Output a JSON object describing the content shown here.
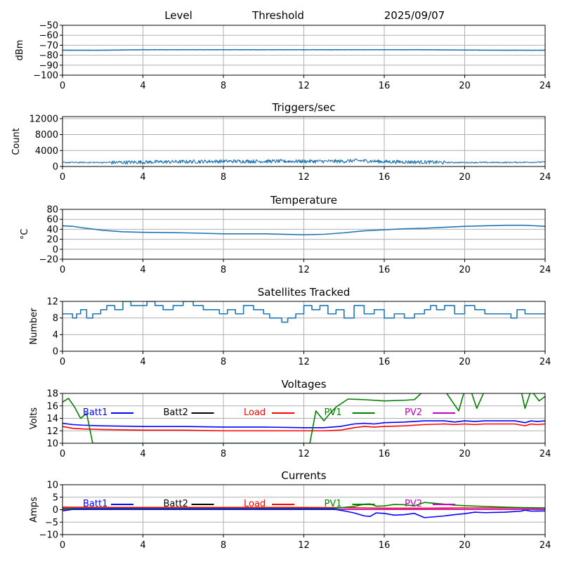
{
  "header": {
    "left": "Level",
    "center": "Threshold",
    "date": "2025/09/07"
  },
  "colors": {
    "primary": "#1f77b4",
    "grid": "#b0b0b0"
  },
  "chart_data": [
    {
      "type": "line",
      "title": "",
      "ylabel": "dBm",
      "xlim": [
        0,
        24
      ],
      "ylim": [
        -100,
        -50
      ],
      "xticks": [
        "0",
        "4",
        "8",
        "12",
        "16",
        "20",
        "24"
      ],
      "yticks": [
        "−50",
        "−60",
        "−70",
        "−80",
        "−90",
        "−100"
      ],
      "ytick_values": [
        -50,
        -60,
        -70,
        -80,
        -90,
        -100
      ],
      "grid": true,
      "series": [
        {
          "color": "#1f77b4",
          "noise": 0.3,
          "x": [
            0,
            2,
            4,
            6,
            8,
            10,
            12,
            14,
            16,
            18,
            20,
            22,
            24
          ],
          "y": [
            -75,
            -75,
            -74.5,
            -74.5,
            -74.5,
            -74.5,
            -74.5,
            -74.5,
            -74.5,
            -74.5,
            -74.8,
            -75,
            -75
          ]
        }
      ]
    },
    {
      "type": "line",
      "title": "Triggers/sec",
      "ylabel": "Count",
      "xlim": [
        0,
        24
      ],
      "ylim": [
        0,
        12500
      ],
      "xticks": [
        "0",
        "4",
        "8",
        "12",
        "16",
        "20",
        "24"
      ],
      "yticks": [
        "0",
        "4000",
        "8000",
        "12000"
      ],
      "ytick_values": [
        0,
        4000,
        8000,
        12000
      ],
      "grid": true,
      "series": [
        {
          "color": "#1f77b4",
          "noise": 450,
          "x": [
            0,
            1,
            2,
            2.4,
            4,
            6,
            8,
            10,
            12,
            14,
            14.6,
            16,
            18,
            19,
            20,
            22,
            24
          ],
          "y": [
            1000,
            1000,
            1000,
            1000,
            1100,
            1200,
            1300,
            1300,
            1300,
            1300,
            1500,
            1200,
            1100,
            1000,
            1000,
            1000,
            1100
          ]
        }
      ]
    },
    {
      "type": "line",
      "title": "Temperature",
      "ylabel": "°C",
      "xlim": [
        0,
        24
      ],
      "ylim": [
        -20,
        80
      ],
      "xticks": [
        "0",
        "4",
        "8",
        "12",
        "16",
        "20",
        "24"
      ],
      "yticks": [
        "−20",
        "0",
        "20",
        "40",
        "60",
        "80"
      ],
      "ytick_values": [
        -20,
        0,
        20,
        40,
        60,
        80
      ],
      "grid": true,
      "series": [
        {
          "color": "#1f77b4",
          "noise": 0,
          "x": [
            0,
            0.5,
            1,
            2,
            3,
            4,
            6,
            8,
            10,
            12,
            13,
            14,
            15,
            16,
            17,
            18,
            19,
            20,
            21,
            22,
            23,
            24
          ],
          "y": [
            47,
            46,
            43,
            38,
            35,
            34,
            33,
            31,
            31,
            29,
            30,
            33,
            37,
            39,
            41,
            42,
            44,
            46,
            47,
            48,
            48,
            46
          ]
        }
      ]
    },
    {
      "type": "line",
      "title": "Satellites Tracked",
      "ylabel": "Number",
      "xlim": [
        0,
        24
      ],
      "ylim": [
        0,
        12
      ],
      "xticks": [
        "0",
        "4",
        "8",
        "12",
        "16",
        "20",
        "24"
      ],
      "yticks": [
        "0",
        "4",
        "8",
        "12"
      ],
      "ytick_values": [
        0,
        4,
        8,
        12
      ],
      "grid": true,
      "series": [
        {
          "color": "#1f77b4",
          "noise": 0,
          "x": [
            0,
            0.3,
            0.5,
            0.7,
            0.9,
            1.2,
            1.5,
            1.9,
            2.2,
            2.6,
            3,
            3.4,
            3.8,
            4.2,
            4.6,
            5,
            5.5,
            6,
            6.5,
            7,
            7.5,
            7.8,
            8.2,
            8.6,
            9,
            9.5,
            10,
            10.3,
            10.6,
            10.9,
            11.2,
            11.6,
            12,
            12.4,
            12.8,
            13.2,
            13.6,
            14,
            14.5,
            15,
            15.5,
            16,
            16.5,
            17,
            17.5,
            18,
            18.3,
            18.6,
            19,
            19.5,
            20,
            20.5,
            21,
            21.5,
            22,
            22.3,
            22.6,
            23,
            23.5,
            24
          ],
          "y": [
            9,
            9,
            8,
            9,
            10,
            8,
            9,
            10,
            11,
            10,
            12,
            11,
            11,
            12,
            11,
            10,
            11,
            12,
            11,
            10,
            10,
            9,
            10,
            9,
            11,
            10,
            9,
            8,
            8,
            7,
            8,
            9,
            11,
            10,
            11,
            9,
            10,
            8,
            11,
            9,
            10,
            8,
            9,
            8,
            9,
            10,
            11,
            10,
            11,
            9,
            11,
            10,
            9,
            9,
            9,
            8,
            10,
            9,
            9,
            9
          ]
        }
      ]
    },
    {
      "type": "line",
      "title": "Voltages",
      "ylabel": "Volts",
      "xlim": [
        0,
        24
      ],
      "ylim": [
        10,
        18
      ],
      "xticks": [
        "0",
        "4",
        "8",
        "12",
        "16",
        "20",
        "24"
      ],
      "yticks": [
        "10",
        "12",
        "14",
        "16",
        "18"
      ],
      "ytick_values": [
        10,
        12,
        14,
        16,
        18
      ],
      "grid": true,
      "legend": [
        {
          "name": "Batt1",
          "color": "#0000ff"
        },
        {
          "name": "Batt2",
          "color": "#000000"
        },
        {
          "name": "Load",
          "color": "#ff0000"
        },
        {
          "name": "PV1",
          "color": "#008000"
        },
        {
          "name": "PV2",
          "color": "#c000c0"
        }
      ],
      "series": [
        {
          "color": "#0000ff",
          "noise": 0,
          "x": [
            0,
            0.5,
            1,
            2,
            4,
            6,
            8,
            10,
            12,
            13,
            13.8,
            14.5,
            15,
            15.5,
            16,
            17,
            18,
            19,
            19.5,
            20,
            20.5,
            21,
            22,
            22.5,
            23,
            23.3,
            23.6,
            24
          ],
          "y": [
            13.2,
            13,
            12.9,
            12.8,
            12.7,
            12.7,
            12.6,
            12.6,
            12.5,
            12.5,
            12.7,
            13.1,
            13.2,
            13.1,
            13.3,
            13.4,
            13.6,
            13.6,
            13.4,
            13.6,
            13.5,
            13.6,
            13.6,
            13.6,
            13.3,
            13.6,
            13.5,
            13.6
          ]
        },
        {
          "color": "#ff0000",
          "noise": 0,
          "x": [
            0,
            0.5,
            1,
            2,
            4,
            6,
            8,
            10,
            12,
            13,
            13.8,
            14.5,
            15,
            15.5,
            16,
            17,
            18,
            19,
            19.5,
            20,
            20.5,
            21,
            22,
            22.5,
            23,
            23.3,
            23.6,
            24
          ],
          "y": [
            12.7,
            12.4,
            12.3,
            12.2,
            12.1,
            12.1,
            12,
            12,
            12,
            12,
            12.1,
            12.5,
            12.7,
            12.6,
            12.7,
            12.8,
            13,
            13.1,
            13,
            13.1,
            13,
            13.1,
            13.1,
            13.1,
            12.8,
            13.1,
            13,
            13.1
          ]
        },
        {
          "color": "#008000",
          "noise": 0,
          "x": [
            0,
            0.3,
            0.6,
            0.9,
            1.2,
            1.5,
            12.3,
            12.6,
            13,
            13.3,
            13.6,
            14.2,
            15,
            16,
            17,
            17.5,
            18,
            19,
            19.7,
            20,
            20.3,
            20.6,
            21,
            22,
            22.8,
            23,
            23.3,
            23.7,
            24
          ],
          "y": [
            16.6,
            17.2,
            15.8,
            14,
            14.8,
            10,
            10,
            15.2,
            13.6,
            14.8,
            15.8,
            17.1,
            17,
            16.8,
            16.9,
            17,
            18.5,
            18.5,
            15.2,
            18.5,
            18.5,
            15.6,
            18.5,
            18.5,
            18.5,
            15.6,
            18.5,
            16.8,
            17.5
          ]
        }
      ]
    },
    {
      "type": "line",
      "title": "Currents",
      "ylabel": "Amps",
      "xlim": [
        0,
        24
      ],
      "ylim": [
        -10,
        10
      ],
      "xticks": [
        "0",
        "4",
        "8",
        "12",
        "16",
        "20",
        "24"
      ],
      "yticks": [
        "−10",
        "−5",
        "0",
        "5",
        "10"
      ],
      "ytick_values": [
        -10,
        -5,
        0,
        5,
        10
      ],
      "grid": true,
      "legend": [
        {
          "name": "Batt1",
          "color": "#0000ff"
        },
        {
          "name": "Batt2",
          "color": "#000000"
        },
        {
          "name": "Load",
          "color": "#ff0000"
        },
        {
          "name": "PV1",
          "color": "#008000"
        },
        {
          "name": "PV2",
          "color": "#c000c0"
        }
      ],
      "series": [
        {
          "color": "#c000c0",
          "noise": 0,
          "x": [
            0,
            4,
            8,
            12,
            16,
            20,
            24
          ],
          "y": [
            0.1,
            0.1,
            0.1,
            0.1,
            0.1,
            0.1,
            0.1
          ]
        },
        {
          "color": "#ff0000",
          "noise": 0,
          "x": [
            0,
            2,
            4,
            6,
            8,
            10,
            12,
            14,
            16,
            18,
            20,
            22,
            24
          ],
          "y": [
            1,
            0.9,
            0.9,
            0.9,
            0.9,
            0.9,
            0.9,
            0.8,
            0.6,
            0.6,
            0.7,
            0.7,
            0.6
          ]
        },
        {
          "color": "#008000",
          "noise": 0,
          "x": [
            0,
            13.5,
            14,
            14.5,
            15,
            15.3,
            15.6,
            16,
            16.5,
            17,
            17.5,
            18,
            19,
            19.5,
            20,
            21,
            22,
            23,
            24
          ],
          "y": [
            0.5,
            0.5,
            0.9,
            1.3,
            2.2,
            2.3,
            1.4,
            1.5,
            2.1,
            2.0,
            1.5,
            2.9,
            2.2,
            1.8,
            1.6,
            1.3,
            1.0,
            0.8,
            0.7
          ]
        },
        {
          "color": "#0000ff",
          "noise": 0,
          "x": [
            0,
            0.5,
            1,
            2,
            4,
            6,
            8,
            10,
            12,
            13.5,
            14,
            14.5,
            15,
            15.3,
            15.6,
            16,
            16.5,
            17,
            17.5,
            18,
            19,
            19.5,
            20,
            20.5,
            21,
            22,
            22.8,
            23,
            23.3,
            24
          ],
          "y": [
            -0.5,
            0.1,
            0.2,
            0.2,
            0.2,
            0.2,
            0.2,
            0.2,
            0.2,
            0.2,
            -0.5,
            -1.3,
            -2.5,
            -2.7,
            -1.3,
            -1.5,
            -2.2,
            -2,
            -1.5,
            -3.2,
            -2.5,
            -2,
            -1.6,
            -1,
            -1.2,
            -1,
            -0.6,
            -0.2,
            -0.6,
            -0.5
          ]
        }
      ]
    }
  ]
}
